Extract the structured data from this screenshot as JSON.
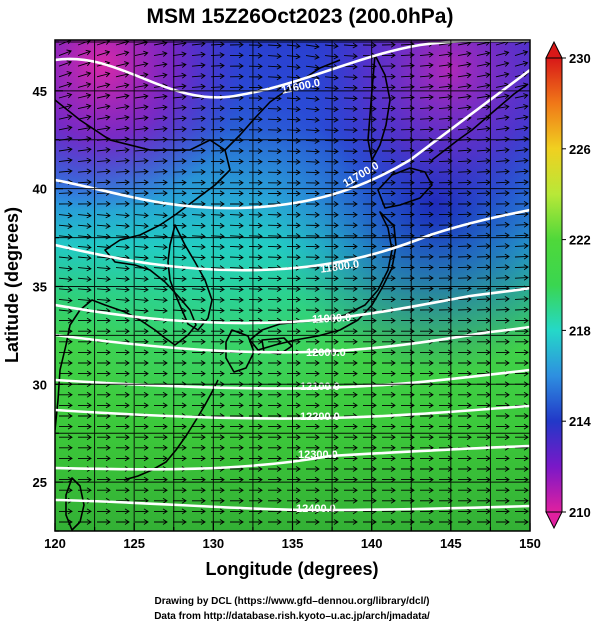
{
  "title": "MSM 15Z26Oct2023 (200.0hPa)",
  "x_axis": {
    "label": "Longitude (degrees)",
    "range": [
      120,
      150
    ],
    "ticks": [
      "120",
      "125",
      "130",
      "135",
      "140",
      "145",
      "150"
    ]
  },
  "y_axis": {
    "label": "Latitude  (degrees)",
    "range": [
      22.5,
      47.6
    ],
    "ticks": [
      "25",
      "30",
      "35",
      "40",
      "45"
    ]
  },
  "colorbar": {
    "range": [
      210,
      230
    ],
    "ticks": [
      "210",
      "214",
      "218",
      "222",
      "226",
      "230"
    ],
    "colors": [
      "#e0209f",
      "#7a18c8",
      "#2238c8",
      "#2e8fe0",
      "#25d8c8",
      "#3ad650",
      "#4fd83a",
      "#b8e838",
      "#f0d020",
      "#f07818",
      "#d81818"
    ]
  },
  "contours": {
    "labels": [
      "11600.0",
      "11700.0",
      "11800.0",
      "11900.0",
      "12000.0",
      "12100.0",
      "12200.0",
      "12300.0",
      "12400.0"
    ]
  },
  "credits": {
    "line1": "Drawing by DCL (https://www.gfd–dennou.org/library/dcl/)",
    "line2": "Data from http://database.rish.kyoto–u.ac.jp/arch/jmadata/"
  }
}
